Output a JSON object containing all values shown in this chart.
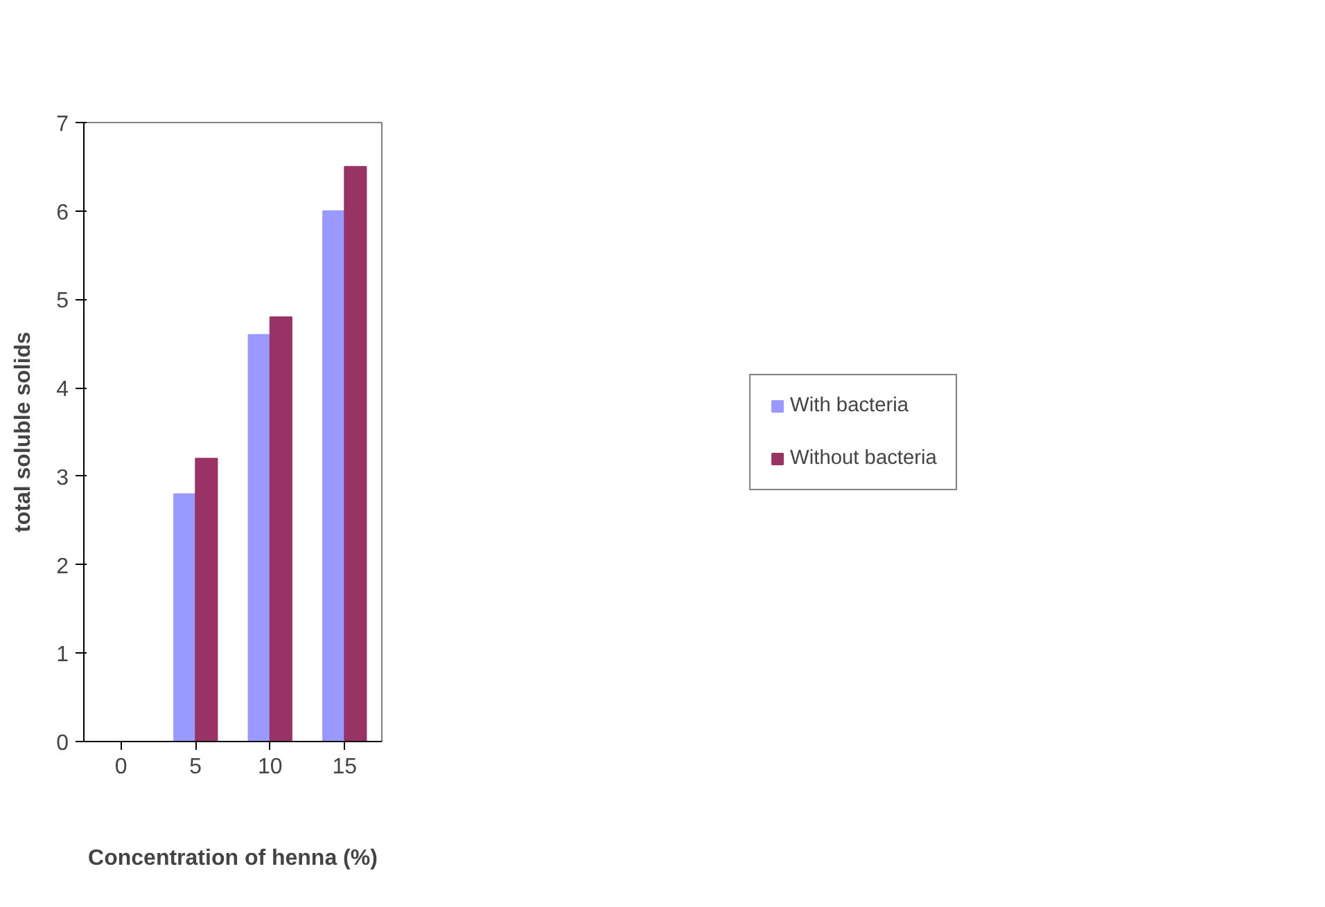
{
  "chart_data": {
    "type": "bar",
    "xlabel": "Concentration of henna (%)",
    "ylabel": "total soluble solids",
    "categories": [
      "0",
      "5",
      "10",
      "15"
    ],
    "series": [
      {
        "name": "With bacteria",
        "color": "#9999ff",
        "values": [
          0,
          2.8,
          4.6,
          6.0
        ]
      },
      {
        "name": "Without bacteria",
        "color": "#993366",
        "values": [
          0,
          3.2,
          4.8,
          6.5
        ]
      }
    ],
    "ylim": [
      0,
      7
    ],
    "yticks": [
      0,
      1,
      2,
      3,
      4,
      5,
      6,
      7
    ],
    "grid": false,
    "legend": "right"
  }
}
